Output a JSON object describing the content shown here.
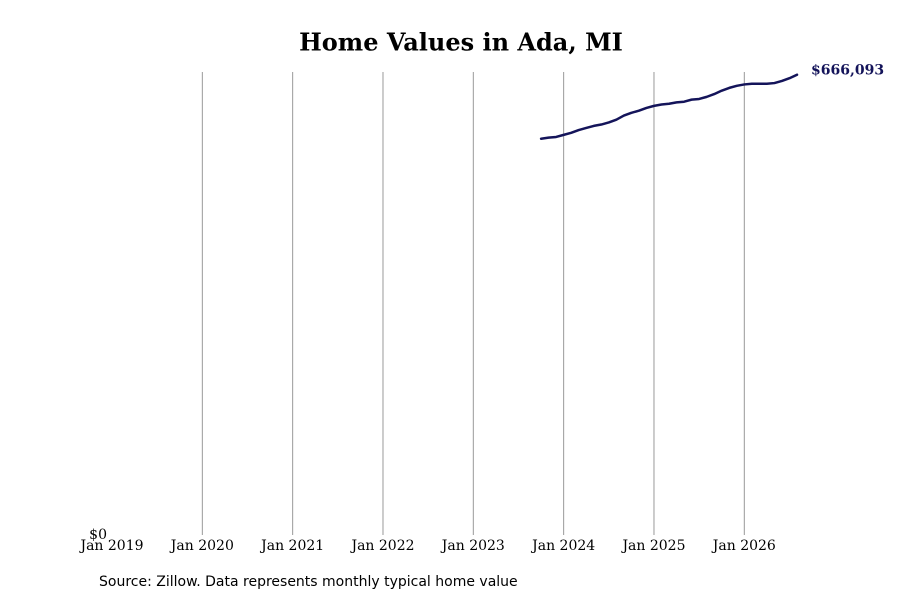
{
  "chart_data": {
    "type": "line",
    "title": "Home Values in Ada, MI",
    "source": "Source: Zillow. Data represents monthly typical home value",
    "x": [
      "2023-10",
      "2023-11",
      "2023-12",
      "2024-01",
      "2024-02",
      "2024-03",
      "2024-04",
      "2024-05",
      "2024-06",
      "2024-07",
      "2024-08",
      "2024-09",
      "2024-10",
      "2024-11",
      "2024-12",
      "2025-01",
      "2025-02",
      "2025-03",
      "2025-04",
      "2025-05",
      "2025-06",
      "2025-07",
      "2025-08",
      "2025-09",
      "2025-10",
      "2025-11",
      "2025-12",
      "2026-01",
      "2026-02",
      "2026-03",
      "2026-04",
      "2026-05",
      "2026-06",
      "2026-07",
      "2026-08"
    ],
    "series": [
      {
        "color": "#14145a",
        "values": [
          573400,
          575000,
          576000,
          579000,
          582000,
          586000,
          589000,
          592000,
          594000,
          597000,
          601000,
          607000,
          611000,
          614000,
          618000,
          621000,
          623000,
          624000,
          626000,
          627000,
          630000,
          631000,
          634000,
          638000,
          643000,
          647000,
          650000,
          652000,
          653000,
          653000,
          653000,
          654000,
          657000,
          661000,
          666093
        ],
        "value_labels": [
          null,
          null,
          null,
          null,
          null,
          null,
          null,
          null,
          null,
          null,
          null,
          null,
          null,
          null,
          null,
          null,
          null,
          null,
          null,
          null,
          null,
          null,
          null,
          null,
          null,
          null,
          null,
          null,
          null,
          null,
          null,
          null,
          null,
          null,
          "$666,093"
        ]
      }
    ],
    "xlim": [
      "2019-01",
      "2026-08"
    ],
    "xticks": [
      {
        "value": "2019-01",
        "label": "Jan 2019"
      },
      {
        "value": "2020-01",
        "label": "Jan 2020"
      },
      {
        "value": "2021-01",
        "label": "Jan 2021"
      },
      {
        "value": "2022-01",
        "label": "Jan 2022"
      },
      {
        "value": "2023-01",
        "label": "Jan 2023"
      },
      {
        "value": "2024-01",
        "label": "Jan 2024"
      },
      {
        "value": "2025-01",
        "label": "Jan 2025"
      },
      {
        "value": "2026-01",
        "label": "Jan 2026"
      }
    ],
    "ylim": [
      0,
      670000
    ],
    "yticks": [
      {
        "value": 0,
        "label": "$0"
      }
    ],
    "grid": true
  }
}
